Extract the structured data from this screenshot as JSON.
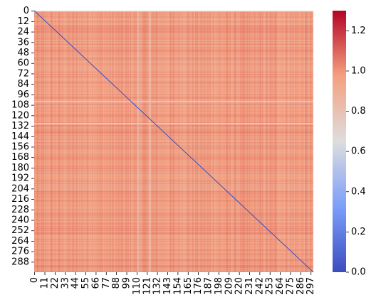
{
  "chart_data": {
    "type": "heatmap",
    "title": "",
    "xlabel": "",
    "ylabel": "",
    "matrix_size": 300,
    "x_tick_labels": [
      "0",
      "11",
      "22",
      "33",
      "44",
      "55",
      "66",
      "77",
      "88",
      "99",
      "110",
      "121",
      "132",
      "143",
      "154",
      "165",
      "176",
      "187",
      "198",
      "209",
      "220",
      "231",
      "242",
      "253",
      "264",
      "275",
      "286",
      "297"
    ],
    "y_tick_labels": [
      "0",
      "12",
      "24",
      "36",
      "48",
      "60",
      "72",
      "84",
      "96",
      "108",
      "120",
      "132",
      "144",
      "156",
      "168",
      "180",
      "192",
      "204",
      "216",
      "228",
      "240",
      "252",
      "264",
      "276",
      "288"
    ],
    "colorbar": {
      "colormap": "coolwarm",
      "vmin": 0.0,
      "vmax": 1.3,
      "tick_labels": [
        "0.0",
        "0.2",
        "0.4",
        "0.6",
        "0.8",
        "1.0",
        "1.2"
      ],
      "tick_values": [
        0.0,
        0.2,
        0.4,
        0.6,
        0.8,
        1.0,
        1.2
      ]
    },
    "diagonal_value": 0.0,
    "typical_off_diagonal_value": 0.95,
    "off_diagonal_range": [
      0.85,
      1.1
    ],
    "light_rows": [
      0,
      104,
      129
    ],
    "light_row_value": 0.7,
    "light_columns": [
      111,
      124
    ],
    "light_column_value": 0.75
  }
}
